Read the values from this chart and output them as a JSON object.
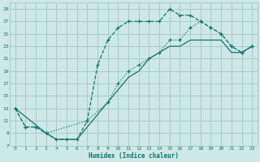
{
  "xlabel": "Humidex (Indice chaleur)",
  "bg_color": "#cce8e8",
  "grid_color": "#aacccc",
  "line_color": "#1a7070",
  "xlim": [
    -0.5,
    23.5
  ],
  "ylim": [
    7,
    30
  ],
  "xticks": [
    0,
    1,
    2,
    3,
    4,
    5,
    6,
    7,
    8,
    9,
    10,
    11,
    12,
    13,
    14,
    15,
    16,
    17,
    18,
    19,
    20,
    21,
    22,
    23
  ],
  "yticks": [
    7,
    9,
    11,
    13,
    15,
    17,
    19,
    21,
    23,
    25,
    27,
    29
  ],
  "curve1_x": [
    0,
    1,
    2,
    3,
    4,
    5,
    6,
    7,
    8,
    9,
    10,
    11,
    12,
    13,
    14,
    15,
    16,
    17,
    18,
    19,
    20,
    21,
    22,
    23
  ],
  "curve1_y": [
    13,
    10,
    10,
    9,
    8,
    8,
    8,
    11,
    20,
    24,
    26,
    27,
    27,
    27,
    27,
    29,
    28,
    28,
    27,
    26,
    25,
    23,
    22,
    23
  ],
  "curve2_x": [
    0,
    1,
    2,
    3,
    7,
    9,
    10,
    11,
    12,
    13,
    14,
    15,
    16,
    17,
    18,
    19,
    20,
    21,
    22,
    23
  ],
  "curve2_y": [
    13,
    10,
    10,
    9,
    11,
    14,
    17,
    19,
    20,
    21,
    22,
    24,
    24,
    26,
    27,
    26,
    25,
    23,
    22,
    23
  ],
  "curve3_x": [
    0,
    3,
    4,
    5,
    6,
    9,
    10,
    11,
    12,
    13,
    14,
    15,
    16,
    17,
    18,
    19,
    20,
    21,
    22,
    23
  ],
  "curve3_y": [
    13,
    9,
    8,
    8,
    8,
    14,
    16,
    18,
    19,
    21,
    22,
    23,
    23,
    24,
    24,
    24,
    24,
    22,
    22,
    23
  ]
}
